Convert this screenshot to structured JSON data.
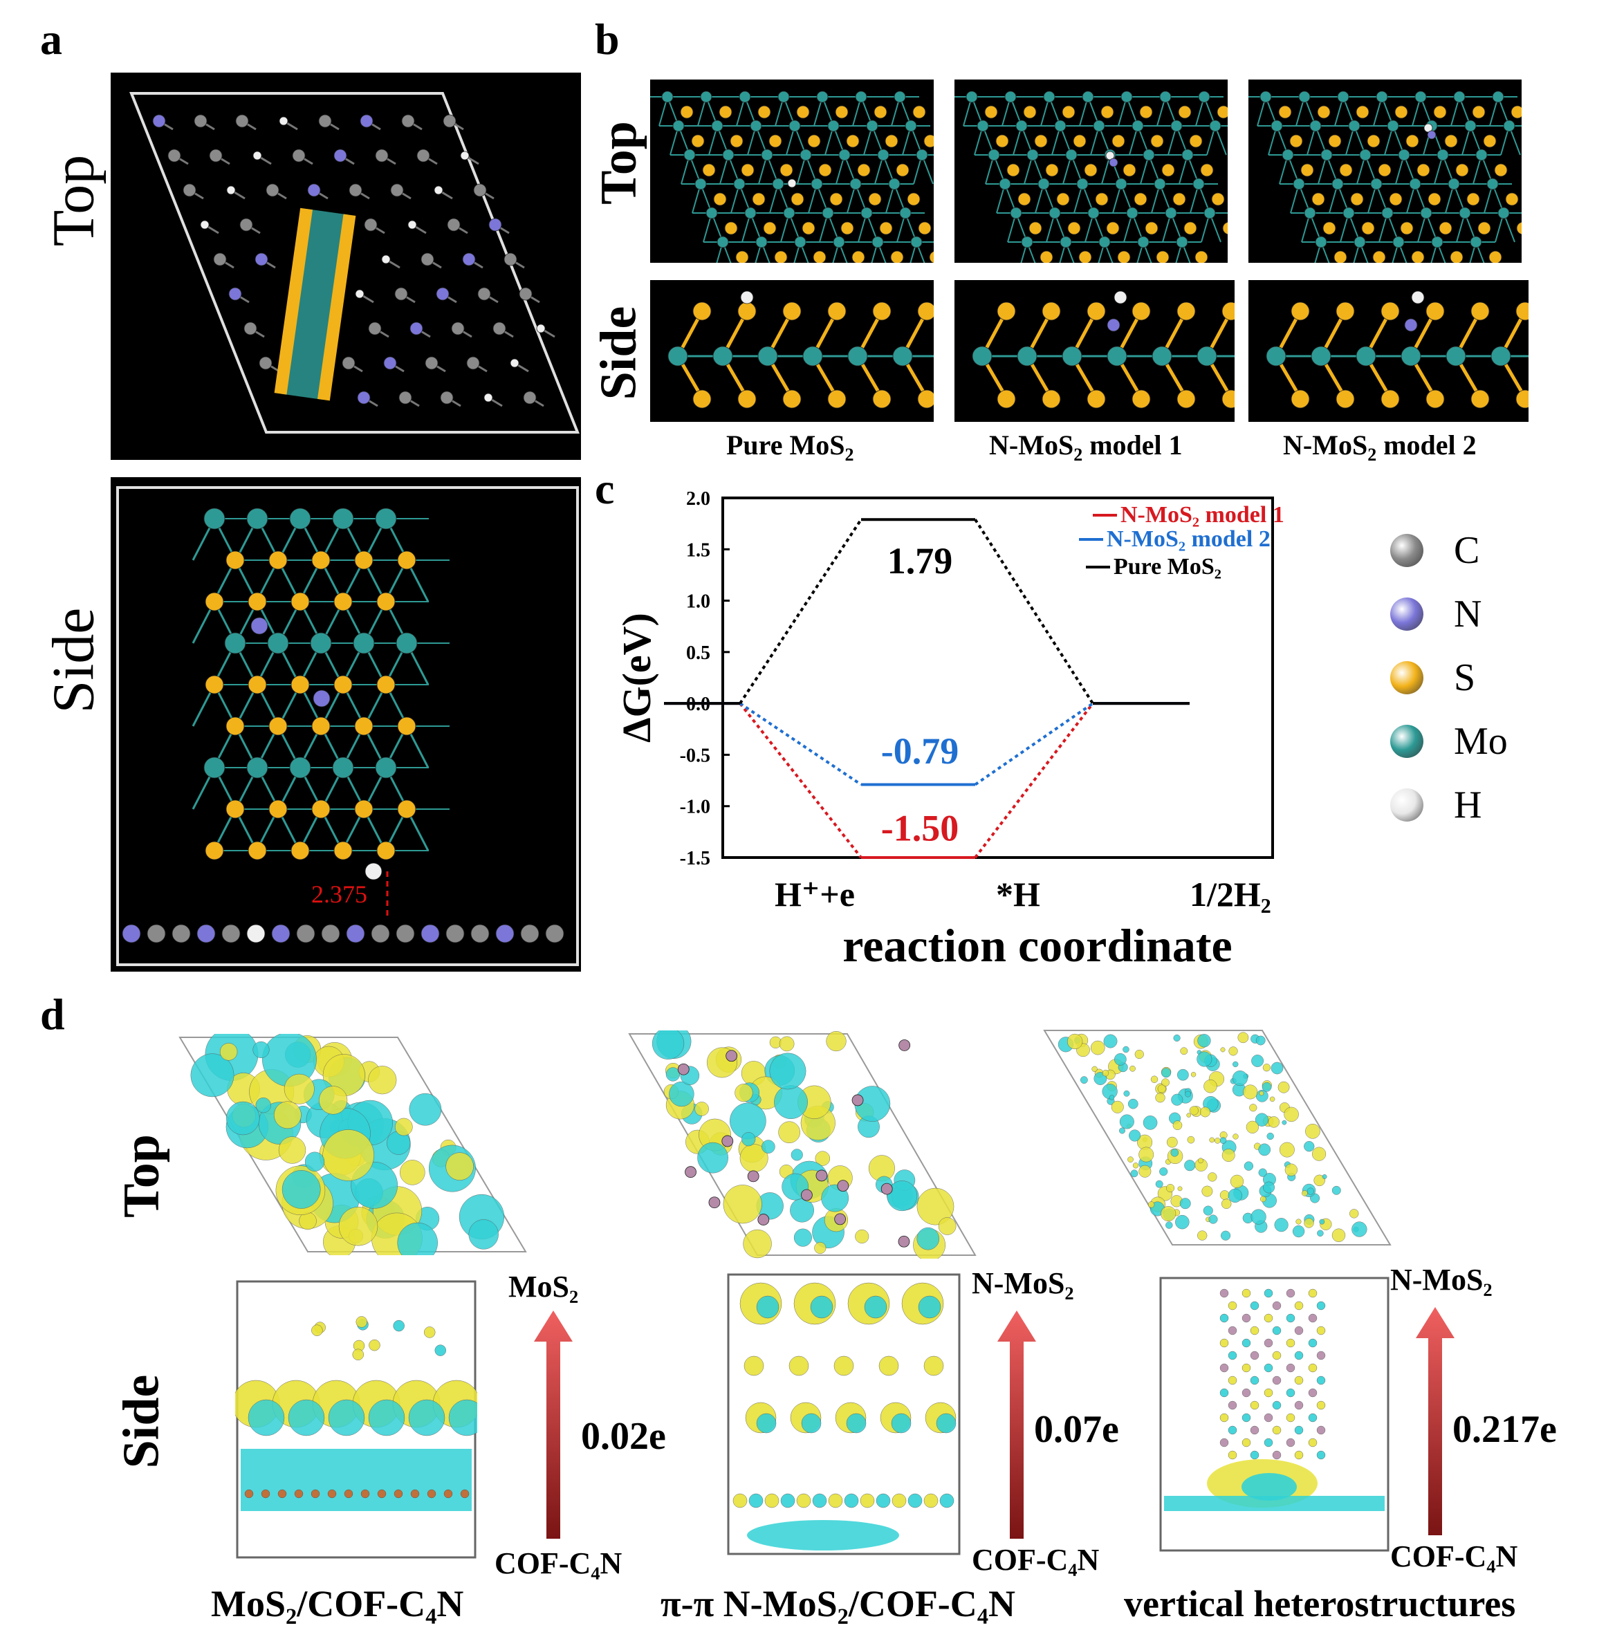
{
  "panel_a": {
    "letter": "a",
    "top_label": "Top",
    "side_label": "Side",
    "distance_label": "2.375"
  },
  "panel_b": {
    "letter": "b",
    "top_label": "Top",
    "side_label": "Side",
    "captions": [
      {
        "prefix": "Pure MoS",
        "sub": "2",
        "suffix": ""
      },
      {
        "prefix": "N-MoS",
        "sub": "2",
        "suffix": " model 1"
      },
      {
        "prefix": "N-MoS",
        "sub": "2",
        "suffix": " model 2"
      }
    ]
  },
  "panel_c": {
    "letter": "c",
    "chart_data": {
      "type": "line",
      "ylabel": "ΔG(eV)",
      "xlabel": "reaction coordinate",
      "x_ticks": [
        "H⁺+e",
        "*H",
        "1/2H₂"
      ],
      "y_ticks": [
        "2.0",
        "1.5",
        "1.0",
        "0.5",
        "0.0",
        "-0.5",
        "-1.0",
        "-1.5"
      ],
      "ylim": [
        -1.5,
        2.0
      ],
      "series": [
        {
          "name": "N-MoS₂ model 1",
          "values": [
            0.0,
            -1.5,
            0.0
          ],
          "color": "#d71920",
          "label": "-1.50"
        },
        {
          "name": "N-MoS₂ model 2",
          "values": [
            0.0,
            -0.79,
            0.0
          ],
          "color": "#1f6fd1",
          "label": "-0.79"
        },
        {
          "name": "Pure MoS₂",
          "values": [
            0.0,
            1.79,
            0.0
          ],
          "color": "#000000",
          "label": "1.79"
        }
      ]
    }
  },
  "legend": {
    "items": [
      {
        "symbol": "C",
        "color": "#8a8a8a"
      },
      {
        "symbol": "N",
        "color": "#7b76d8"
      },
      {
        "symbol": "S",
        "color": "#f2b21a"
      },
      {
        "symbol": "Mo",
        "color": "#2e9a95"
      },
      {
        "symbol": "H",
        "color": "#e8e8e8"
      }
    ]
  },
  "panel_d": {
    "letter": "d",
    "top_label": "Top",
    "side_label": "Side",
    "columns": [
      {
        "arrow_top": "MoS₂",
        "arrow_bottom": "COF-C₄N",
        "charge": "0.02e",
        "caption": "MoS₂/COF-C₄N"
      },
      {
        "arrow_top": "N-MoS₂",
        "arrow_bottom": "COF-C₄N",
        "charge": "0.07e",
        "caption": "π-π N-MoS₂/COF-C₄N"
      },
      {
        "arrow_top": "N-MoS₂",
        "arrow_bottom": "COF-C₄N",
        "charge": "0.217e",
        "caption": "vertical heterostructures"
      }
    ]
  },
  "colors": {
    "mo": "#2e9a95",
    "s": "#f2b21a",
    "n": "#7b76d8",
    "c": "#8a8a8a",
    "h": "#f0f0f0",
    "cyan": "#33d1d6",
    "yellow": "#e8e23a"
  }
}
